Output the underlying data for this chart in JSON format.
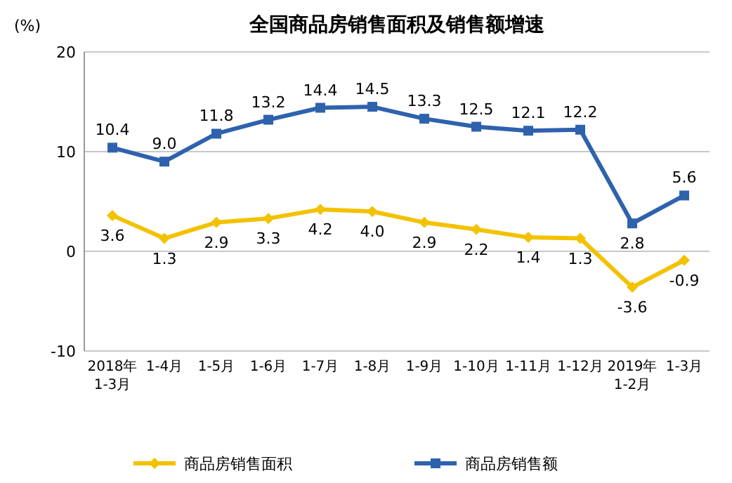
{
  "chart_data": {
    "type": "line",
    "title": "全国商品房销售面积及销售额增速",
    "ylabel": "(%)",
    "categories": [
      "2018年\n1-3月",
      "1-4月",
      "1-5月",
      "1-6月",
      "1-7月",
      "1-8月",
      "1-9月",
      "1-10月",
      "1-11月",
      "1-12月",
      "2019年\n1-2月",
      "1-3月"
    ],
    "series": [
      {
        "name": "商品房销售面积",
        "color": "#f2c200",
        "marker": "diamond",
        "values": [
          3.6,
          1.3,
          2.9,
          3.3,
          4.2,
          4.0,
          2.9,
          2.2,
          1.4,
          1.3,
          -3.6,
          -0.9
        ],
        "value_labels": [
          "3.6",
          "1.3",
          "2.9",
          "3.3",
          "4.2",
          "4.0",
          "2.9",
          "2.2",
          "1.4",
          "1.3",
          "-3.6",
          "-0.9"
        ]
      },
      {
        "name": "商品房销售额",
        "color": "#2e62ad",
        "marker": "square",
        "values": [
          10.4,
          9.0,
          11.8,
          13.2,
          14.4,
          14.5,
          13.3,
          12.5,
          12.1,
          12.2,
          2.8,
          5.6
        ],
        "value_labels": [
          "10.4",
          "9.0",
          "11.8",
          "13.2",
          "14.4",
          "14.5",
          "13.3",
          "12.5",
          "12.1",
          "12.2",
          "2.8",
          "5.6"
        ]
      }
    ],
    "ylim": [
      -10,
      20
    ],
    "yticks": [
      -10,
      0,
      10,
      20
    ],
    "grid": "y",
    "legend": "bottom"
  }
}
